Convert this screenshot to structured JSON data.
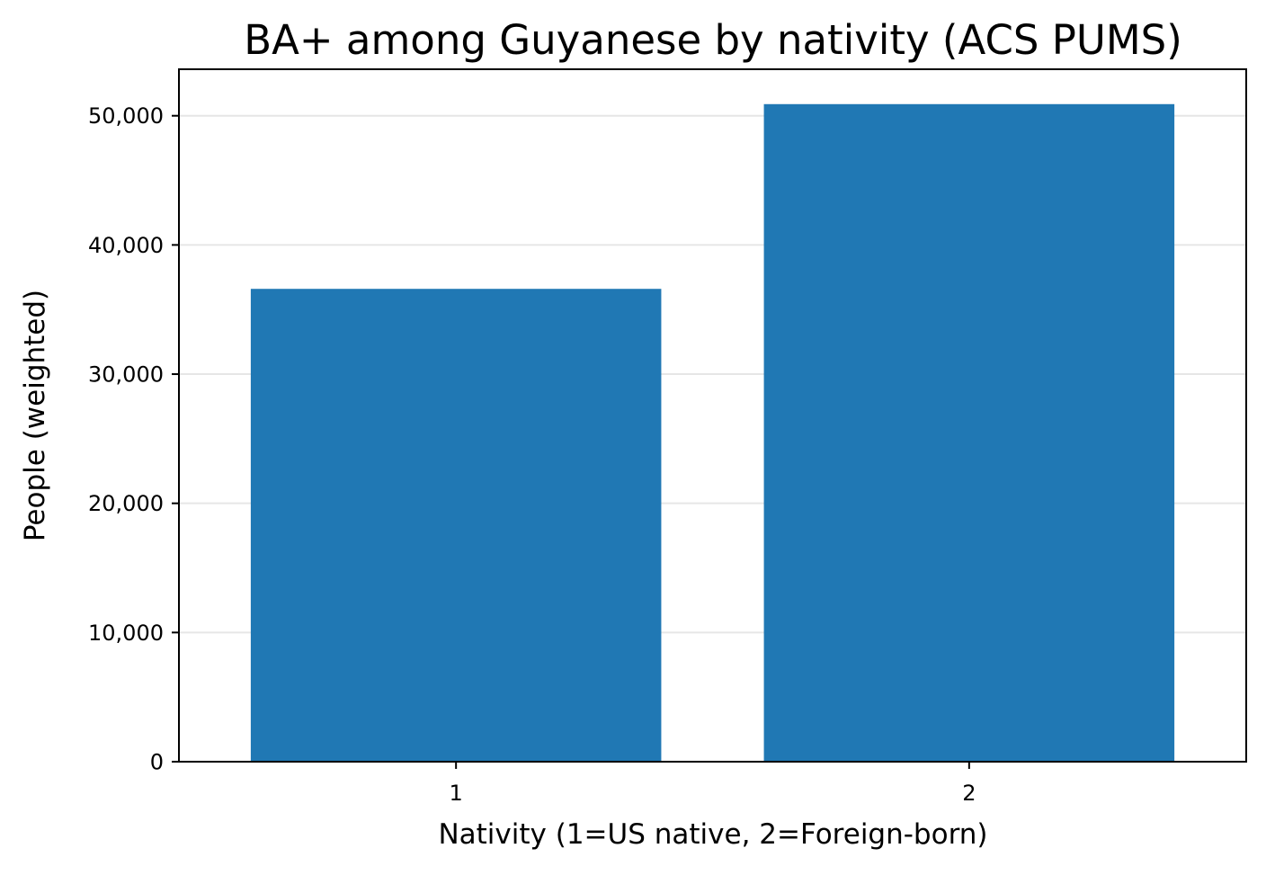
{
  "chart_data": {
    "type": "bar",
    "title": "BA+ among Guyanese by nativity (ACS PUMS)",
    "xlabel": "Nativity (1=US native, 2=Foreign-born)",
    "ylabel": "People (weighted)",
    "categories": [
      "1",
      "2"
    ],
    "values": [
      36600,
      50900
    ],
    "ylim": [
      0,
      53600
    ],
    "yticks": [
      0,
      10000,
      20000,
      30000,
      40000,
      50000
    ],
    "ytick_labels": [
      "0",
      "10,000",
      "20,000",
      "30,000",
      "40,000",
      "50,000"
    ],
    "grid": "horizontal",
    "legend": "none",
    "bar_color": "#2078b4",
    "grid_color": "#e6e6e6"
  }
}
